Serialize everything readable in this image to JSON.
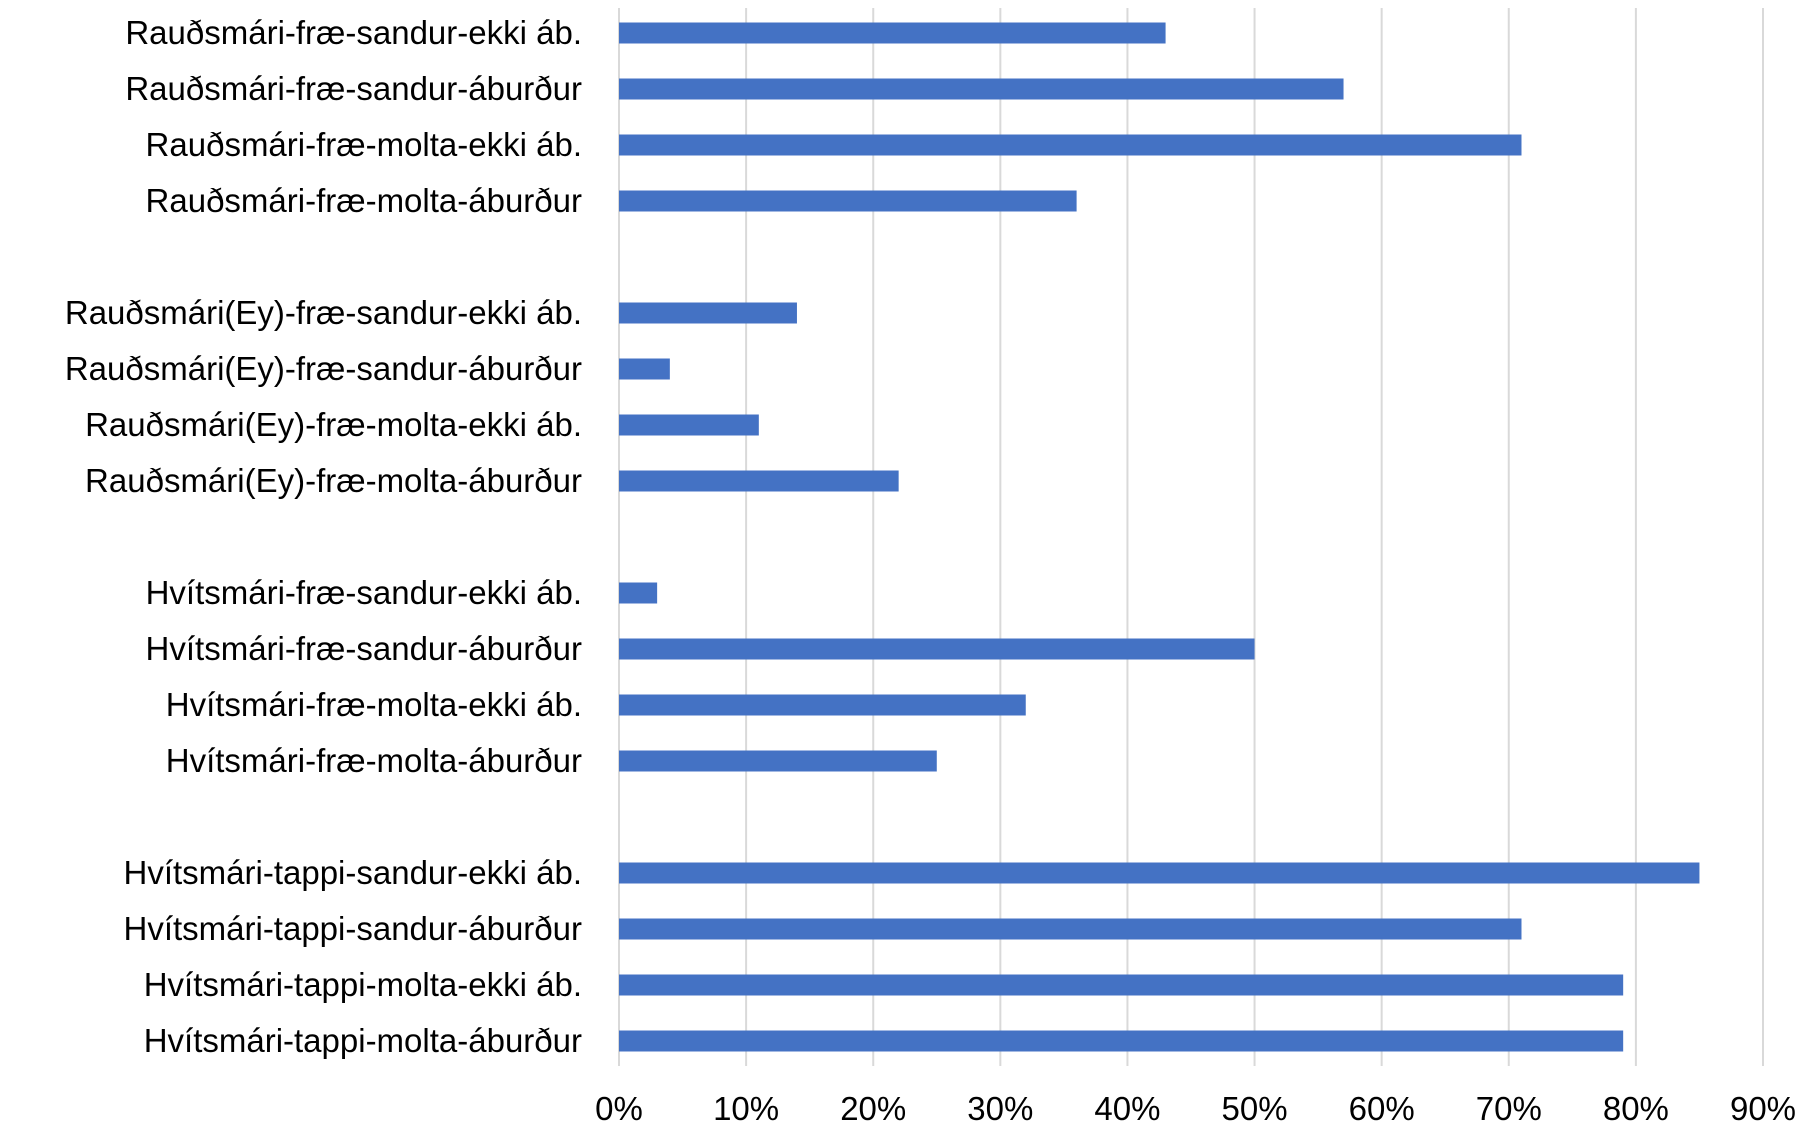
{
  "chart_data": {
    "type": "bar",
    "orientation": "horizontal",
    "title": "",
    "xlabel": "",
    "ylabel": "",
    "xlim": [
      0,
      0.9
    ],
    "ticks": [
      0,
      0.1,
      0.2,
      0.3,
      0.4,
      0.5,
      0.6,
      0.7,
      0.8,
      0.9
    ],
    "tick_labels": [
      "0%",
      "10%",
      "20%",
      "30%",
      "40%",
      "50%",
      "60%",
      "70%",
      "80%",
      "90%"
    ],
    "grid": true,
    "legend": "none",
    "bar_color": "#4472C4",
    "categories": [
      "Rauðsmári-fræ-sandur-ekki áb.",
      "Rauðsmári-fræ-sandur-áburður",
      "Rauðsmári-fræ-molta-ekki áb.",
      "Rauðsmári-fræ-molta-áburður",
      "",
      "Rauðsmári(Ey)-fræ-sandur-ekki áb.",
      "Rauðsmári(Ey)-fræ-sandur-áburður",
      "Rauðsmári(Ey)-fræ-molta-ekki áb.",
      "Rauðsmári(Ey)-fræ-molta-áburður",
      "",
      "Hvítsmári-fræ-sandur-ekki áb.",
      "Hvítsmári-fræ-sandur-áburður",
      "Hvítsmári-fræ-molta-ekki áb.",
      "Hvítsmári-fræ-molta-áburður",
      "",
      "Hvítsmári-tappi-sandur-ekki áb.",
      "Hvítsmári-tappi-sandur-áburður",
      "Hvítsmári-tappi-molta-ekki áb.",
      "Hvítsmári-tappi-molta-áburður"
    ],
    "values": [
      0.43,
      0.57,
      0.71,
      0.36,
      null,
      0.14,
      0.04,
      0.11,
      0.22,
      null,
      0.03,
      0.5,
      0.32,
      0.25,
      null,
      0.85,
      0.71,
      0.79,
      0.79
    ]
  }
}
